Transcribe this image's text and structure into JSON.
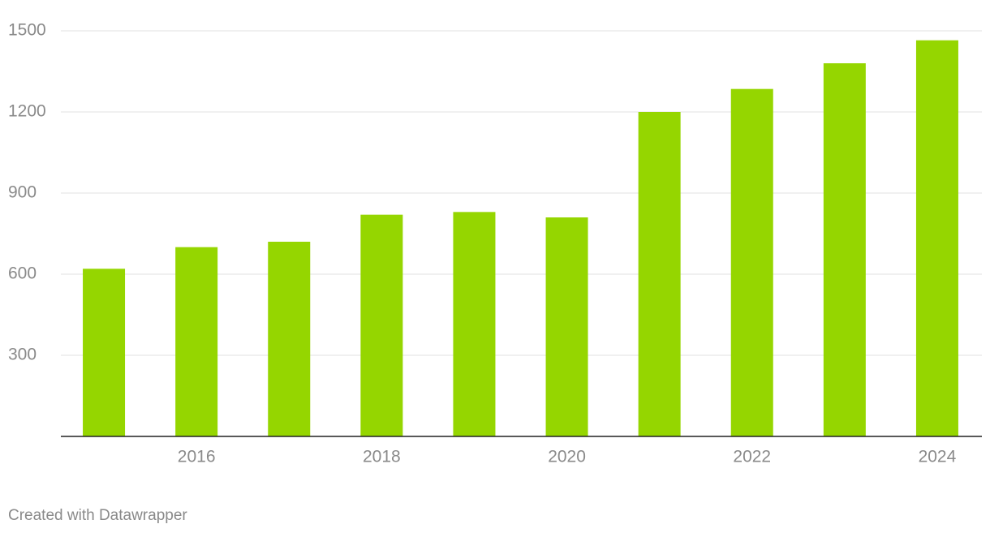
{
  "chart_data": {
    "type": "bar",
    "categories": [
      null,
      2016,
      null,
      2018,
      null,
      2020,
      null,
      2022,
      null,
      2024
    ],
    "values": [
      620,
      700,
      720,
      820,
      830,
      810,
      1200,
      1285,
      1380,
      1465
    ],
    "color": "#95d600",
    "ylim": [
      0,
      1500
    ],
    "yticks": [
      300,
      600,
      900,
      1200,
      1500
    ],
    "grid": true,
    "footer": "Created with Datawrapper"
  }
}
